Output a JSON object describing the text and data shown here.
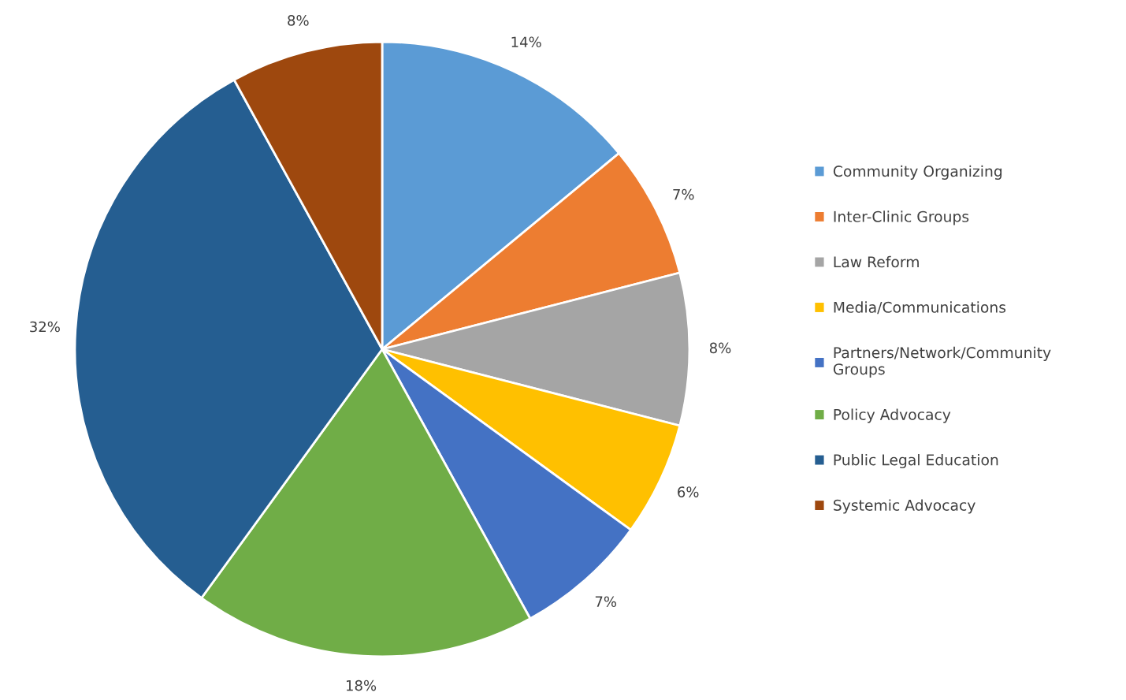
{
  "chart_data": {
    "type": "pie",
    "categories": [
      "Community Organizing",
      "Inter-Clinic Groups",
      "Law Reform",
      "Media/Communications",
      "Partners/Network/Community Groups",
      "Policy Advocacy",
      "Public Legal Education",
      "Systemic Advocacy"
    ],
    "values": [
      14,
      7,
      8,
      6,
      7,
      18,
      32,
      8
    ],
    "colors": [
      "#5b9bd5",
      "#ed7d31",
      "#a5a5a5",
      "#ffc000",
      "#4472c4",
      "#70ad47",
      "#255e91",
      "#9e480e"
    ],
    "value_labels": [
      "14%",
      "7%",
      "8%",
      "6%",
      "7%",
      "18%",
      "32%",
      "8%"
    ],
    "legend": "right"
  }
}
